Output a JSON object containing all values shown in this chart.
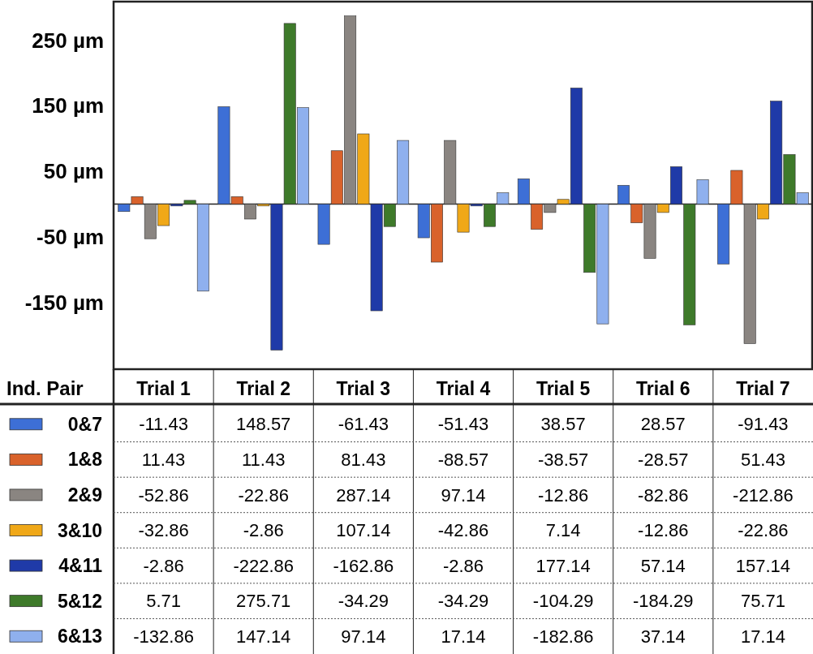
{
  "chart_data": {
    "type": "bar",
    "legend_title": "Ind. Pair",
    "categories": [
      "Trial 1",
      "Trial 2",
      "Trial 3",
      "Trial 4",
      "Trial 5",
      "Trial 6",
      "Trial 7"
    ],
    "series": [
      {
        "name": "0&7",
        "color": "#3d6fd6",
        "values": [
          -11.43,
          148.57,
          -61.43,
          -51.43,
          38.57,
          28.57,
          -91.43
        ]
      },
      {
        "name": "1&8",
        "color": "#d9622b",
        "values": [
          11.43,
          11.43,
          81.43,
          -88.57,
          -38.57,
          -28.57,
          51.43
        ]
      },
      {
        "name": "2&9",
        "color": "#8a8581",
        "values": [
          -52.86,
          -22.86,
          287.14,
          97.14,
          -12.86,
          -82.86,
          -212.86
        ]
      },
      {
        "name": "3&10",
        "color": "#f0a818",
        "values": [
          -32.86,
          -2.86,
          107.14,
          -42.86,
          7.14,
          -12.86,
          -22.86
        ]
      },
      {
        "name": "4&11",
        "color": "#1f3aa8",
        "values": [
          -2.86,
          -222.86,
          -162.86,
          -2.86,
          177.14,
          57.14,
          157.14
        ]
      },
      {
        "name": "5&12",
        "color": "#3e7a2a",
        "values": [
          5.71,
          275.71,
          -34.29,
          -34.29,
          -104.29,
          -184.29,
          75.71
        ]
      },
      {
        "name": "6&13",
        "color": "#8fb0ee",
        "values": [
          -132.86,
          147.14,
          97.14,
          17.14,
          -182.86,
          37.14,
          17.14
        ]
      }
    ],
    "ylim": [
      -252,
      309
    ],
    "yticks": [
      {
        "value": 250,
        "label": "250 µm"
      },
      {
        "value": 150,
        "label": "150 µm"
      },
      {
        "value": 50,
        "label": "50 µm"
      },
      {
        "value": -50,
        "label": "-50 µm"
      },
      {
        "value": -150,
        "label": "-150 µm"
      }
    ],
    "data_labels": true,
    "legend": "bottom left",
    "grid": false
  }
}
